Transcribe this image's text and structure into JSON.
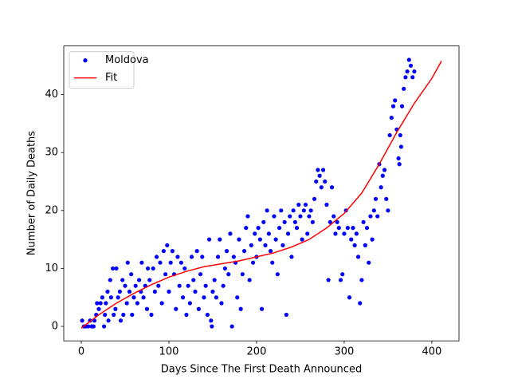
{
  "chart_data": {
    "type": "scatter",
    "xlabel": "Days Since The First Death Announced",
    "ylabel": "Number of Daily Deaths",
    "xlim": [
      -20,
      431
    ],
    "ylim": [
      -2.5,
      48.4
    ],
    "xticks": [
      0,
      100,
      200,
      300,
      400
    ],
    "yticks": [
      0,
      10,
      20,
      30,
      40
    ],
    "grid": false,
    "legend": "upper left",
    "series": [
      {
        "name": "Moldova",
        "color": "blue",
        "mode": "markers",
        "x": [
          1,
          3,
          5,
          8,
          10,
          12,
          14,
          15,
          17,
          18,
          20,
          22,
          24,
          26,
          27,
          28,
          30,
          31,
          33,
          34,
          36,
          37,
          39,
          40,
          42,
          44,
          45,
          47,
          48,
          50,
          52,
          53,
          55,
          57,
          58,
          60,
          62,
          64,
          66,
          68,
          69,
          71,
          73,
          75,
          76,
          78,
          80,
          82,
          84,
          86,
          88,
          90,
          92,
          94,
          96,
          98,
          100,
          102,
          104,
          106,
          108,
          110,
          112,
          114,
          116,
          118,
          120,
          122,
          124,
          126,
          128,
          130,
          132,
          134,
          136,
          138,
          140,
          142,
          144,
          146,
          148,
          149,
          150,
          152,
          154,
          156,
          158,
          160,
          162,
          164,
          166,
          168,
          170,
          172,
          174,
          176,
          178,
          180,
          182,
          184,
          186,
          188,
          190,
          192,
          194,
          196,
          198,
          200,
          202,
          204,
          206,
          208,
          210,
          212,
          214,
          216,
          218,
          220,
          222,
          224,
          226,
          228,
          230,
          232,
          234,
          236,
          238,
          240,
          242,
          244,
          246,
          248,
          250,
          252,
          254,
          256,
          258,
          260,
          262,
          264,
          266,
          268,
          270,
          272,
          274,
          276,
          278,
          280,
          282,
          284,
          286,
          288,
          290,
          292,
          294,
          296,
          298,
          300,
          302,
          304,
          306,
          308,
          310,
          312,
          314,
          316,
          318,
          320,
          322,
          324,
          326,
          328,
          330,
          332,
          334,
          336,
          338,
          340,
          342,
          344,
          346,
          348,
          350,
          352,
          354,
          356,
          358,
          360,
          362,
          363,
          364,
          365,
          366,
          368,
          370,
          372,
          374,
          376,
          378,
          380
        ],
        "values": [
          1,
          0,
          0,
          0,
          1,
          0,
          0,
          1,
          2,
          4,
          3,
          4,
          5,
          0,
          2,
          4,
          6,
          1,
          8,
          5,
          10,
          2,
          3,
          10,
          5,
          6,
          1,
          8,
          2,
          7,
          4,
          11,
          6,
          9,
          2,
          5,
          7,
          4,
          8,
          6,
          11,
          5,
          7,
          3,
          10,
          8,
          2,
          10,
          6,
          12,
          7,
          11,
          4,
          13,
          9,
          14,
          6,
          11,
          13,
          9,
          3,
          12,
          7,
          11,
          5,
          10,
          2,
          7,
          4,
          12,
          8,
          6,
          13,
          3,
          9,
          12,
          5,
          7,
          2,
          15,
          1,
          0,
          6,
          8,
          5,
          12,
          15,
          4,
          7,
          10,
          13,
          9,
          16,
          0,
          12,
          11,
          5,
          15,
          3,
          9,
          13,
          17,
          19,
          8,
          14,
          11,
          16,
          12,
          17,
          15,
          3,
          18,
          14,
          20,
          16,
          13,
          11,
          19,
          15,
          9,
          17,
          20,
          14,
          18,
          2,
          16,
          19,
          12,
          20,
          18,
          17,
          21,
          19,
          15,
          20,
          21,
          16,
          19,
          20,
          18,
          22,
          25,
          27,
          26,
          24,
          27,
          25,
          21,
          8,
          18,
          24,
          19,
          16,
          18,
          17,
          8,
          9,
          16,
          20,
          17,
          5,
          15,
          17,
          14,
          16,
          12,
          4,
          8,
          18,
          14,
          17,
          11,
          19,
          15,
          20,
          22,
          19,
          28,
          24,
          26,
          27,
          22,
          20,
          33,
          36,
          38,
          39,
          34,
          29,
          28,
          33,
          31,
          38,
          41,
          43,
          44,
          46,
          45,
          43,
          44
        ]
      },
      {
        "name": "Fit",
        "color": "red",
        "mode": "line",
        "x": [
          0,
          20,
          40,
          60,
          80,
          100,
          120,
          140,
          160,
          180,
          200,
          220,
          240,
          260,
          280,
          300,
          320,
          340,
          360,
          380,
          400,
          411
        ],
        "values": [
          -0.3,
          2,
          4,
          5.7,
          7.2,
          8.5,
          9.5,
          10.3,
          10.8,
          11.3,
          12,
          12.7,
          13.7,
          15,
          17,
          19.5,
          23,
          28,
          33.5,
          38.5,
          42.8,
          45.8
        ]
      }
    ]
  }
}
